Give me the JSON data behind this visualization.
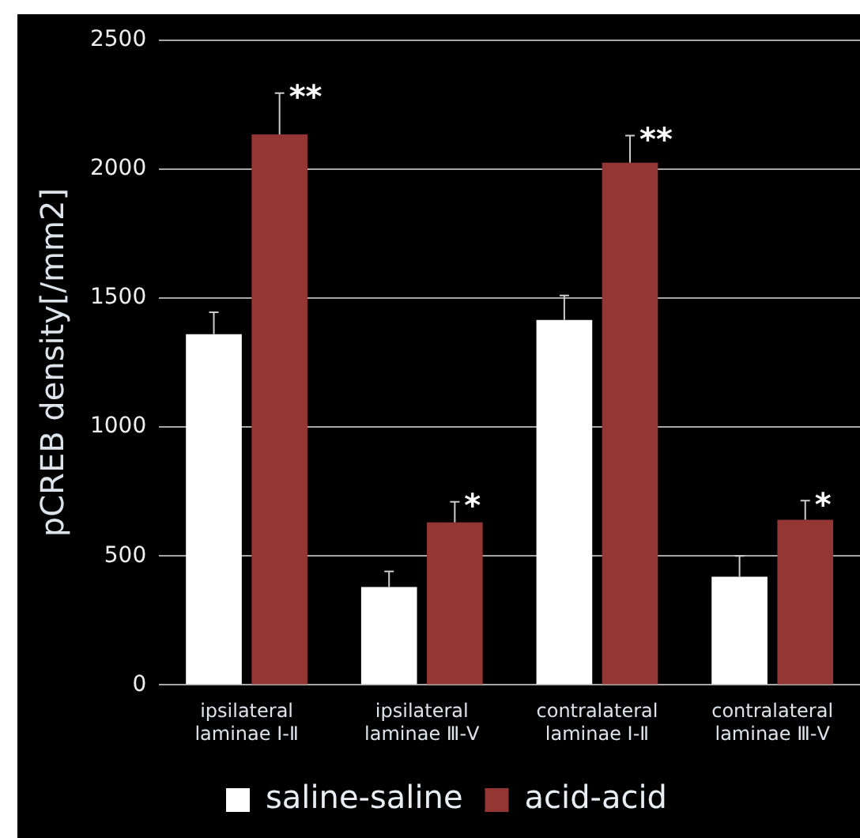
{
  "chart_data": {
    "type": "bar",
    "ylabel": "pCREB density[/mm2]",
    "categories": [
      "ipsilateral laminae Ⅰ-Ⅱ",
      "ipsilateral laminae Ⅲ-Ⅴ",
      "contralateral laminae Ⅰ-Ⅱ",
      "contralateral laminae Ⅲ-Ⅴ"
    ],
    "series": [
      {
        "name": "saline-saline",
        "color": "#ffffff",
        "values": [
          1360,
          380,
          1415,
          420
        ],
        "errors": [
          [
            1360,
            1445
          ],
          [
            380,
            440
          ],
          [
            1415,
            1510
          ],
          [
            420,
            500
          ]
        ]
      },
      {
        "name": "acid-acid",
        "color": "#943634",
        "values": [
          2135,
          630,
          2025,
          640
        ],
        "errors": [
          [
            2135,
            2295
          ],
          [
            630,
            710
          ],
          [
            2025,
            2130
          ],
          [
            640,
            715
          ]
        ]
      }
    ],
    "ylim": [
      0,
      2500
    ],
    "yticks": [
      0,
      500,
      1000,
      1500,
      2000,
      2500
    ],
    "grid": "y",
    "legend": "bottom",
    "annotations": [
      "**",
      "*",
      "**",
      "*"
    ]
  }
}
